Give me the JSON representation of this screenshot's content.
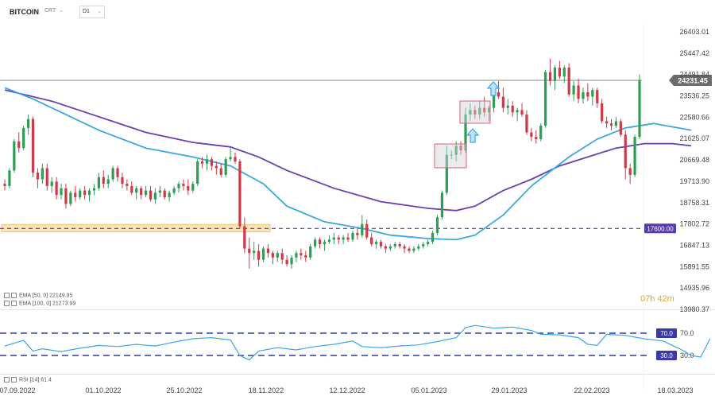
{
  "header": {
    "symbol": "BITCOIN",
    "instrument_type": "CRT",
    "timeframe": "D1"
  },
  "legend": {
    "ema50": "EMA [50, 0] 22149.95",
    "ema100": "EMA [100, 0] 21273.99",
    "rsi": "RSI [14] 61.4"
  },
  "countdown": "07h 42m",
  "colors": {
    "up": "#2e9e54",
    "down": "#d0394a",
    "ema50": "#39a8e0",
    "ema100": "#6a3fb0",
    "rsi": "#39a8e0",
    "level_line": "#4a3aa6",
    "rsi_band": "#2c3aa8",
    "price_tag_bg": "#6b6b6b",
    "level_tag_bg": "#5a3aa8",
    "rsi_tag_bg": "#3a3aa6",
    "support_box": "#f1c27a",
    "annotation_box": "#d6607a",
    "arrow": "#3aa6e6"
  },
  "chart_data": {
    "type": "candlestick",
    "price_axis_ticks": [
      "26403.01",
      "25447.42",
      "24491.84",
      "23536.25",
      "22580.66",
      "21625.07",
      "20669.48",
      "19713.90",
      "18758.31",
      "17802.72",
      "16847.13",
      "15891.55",
      "14935.96",
      "13980.37"
    ],
    "x_axis_ticks": [
      "07.09.2022",
      "01.10.2022",
      "25.10.2022",
      "18.11.2022",
      "12.12.2022",
      "05.01.2023",
      "29.01.2023",
      "22.02.2023",
      "18.03.2023"
    ],
    "ylim": [
      13980.37,
      26403.01
    ],
    "current_price": "24231.45",
    "current_price_value": 24231.45,
    "horizontal_level": "17600.00",
    "horizontal_level_value": 17600,
    "support_zone": [
      17450,
      17780
    ],
    "candles_x_range": [
      0,
      160
    ],
    "candles": [
      [
        19600,
        19800,
        19300,
        19500
      ],
      [
        19500,
        20300,
        19400,
        20200
      ],
      [
        20200,
        21600,
        20100,
        21500
      ],
      [
        21500,
        21900,
        21000,
        21200
      ],
      [
        21200,
        22200,
        21100,
        22100
      ],
      [
        22100,
        22700,
        21800,
        22500
      ],
      [
        22500,
        22600,
        19900,
        20100
      ],
      [
        20100,
        20300,
        19400,
        19800
      ],
      [
        19800,
        20500,
        19600,
        20300
      ],
      [
        20300,
        20500,
        19300,
        19500
      ],
      [
        19500,
        19900,
        19200,
        19700
      ],
      [
        19700,
        19900,
        18900,
        19100
      ],
      [
        19100,
        19600,
        18900,
        19400
      ],
      [
        19400,
        19600,
        18500,
        18700
      ],
      [
        18700,
        19300,
        18600,
        19200
      ],
      [
        19200,
        19500,
        18800,
        19000
      ],
      [
        19000,
        19400,
        18900,
        19300
      ],
      [
        19300,
        19500,
        18900,
        19100
      ],
      [
        19100,
        19400,
        18800,
        19300
      ],
      [
        19300,
        19600,
        19100,
        19400
      ],
      [
        19400,
        20100,
        19300,
        19900
      ],
      [
        19900,
        20200,
        19400,
        19600
      ],
      [
        19600,
        20000,
        19400,
        19800
      ],
      [
        19800,
        20400,
        19700,
        20300
      ],
      [
        20300,
        20400,
        19700,
        19900
      ],
      [
        19900,
        20100,
        19400,
        19600
      ],
      [
        19600,
        19800,
        19300,
        19500
      ],
      [
        19500,
        19700,
        19100,
        19200
      ],
      [
        19200,
        19500,
        18900,
        19400
      ],
      [
        19400,
        19500,
        18900,
        19100
      ],
      [
        19100,
        19500,
        19000,
        19300
      ],
      [
        19300,
        19500,
        18800,
        18900
      ],
      [
        18900,
        19400,
        18700,
        19200
      ],
      [
        19200,
        19500,
        19000,
        19300
      ],
      [
        19300,
        19400,
        18900,
        19000
      ],
      [
        19000,
        19300,
        18800,
        19200
      ],
      [
        19200,
        19500,
        19100,
        19400
      ],
      [
        19400,
        19700,
        19200,
        19600
      ],
      [
        19600,
        19800,
        19300,
        19500
      ],
      [
        19500,
        19800,
        19100,
        19300
      ],
      [
        19300,
        19700,
        19200,
        19600
      ],
      [
        19600,
        20700,
        19500,
        20600
      ],
      [
        20600,
        20800,
        20300,
        20500
      ],
      [
        20500,
        20900,
        20200,
        20700
      ],
      [
        20700,
        20800,
        20200,
        20400
      ],
      [
        20400,
        20600,
        20000,
        20300
      ],
      [
        20300,
        20500,
        19900,
        20000
      ],
      [
        20000,
        20800,
        19900,
        20700
      ],
      [
        20700,
        21200,
        20600,
        20800
      ],
      [
        20800,
        21000,
        20500,
        20600
      ],
      [
        20600,
        20700,
        17600,
        17700
      ],
      [
        17700,
        18100,
        16500,
        16700
      ],
      [
        16700,
        17200,
        15800,
        16500
      ],
      [
        16500,
        17000,
        16200,
        16600
      ],
      [
        16600,
        16900,
        15900,
        16200
      ],
      [
        16200,
        16800,
        16100,
        16700
      ],
      [
        16700,
        16900,
        16300,
        16500
      ],
      [
        16500,
        16600,
        16000,
        16300
      ],
      [
        16300,
        16600,
        16100,
        16500
      ],
      [
        16500,
        16700,
        16000,
        16200
      ],
      [
        16200,
        16400,
        15900,
        16000
      ],
      [
        16000,
        16400,
        15800,
        16300
      ],
      [
        16300,
        16600,
        16100,
        16500
      ],
      [
        16500,
        16700,
        16200,
        16400
      ],
      [
        16400,
        16600,
        16100,
        16300
      ],
      [
        16300,
        16900,
        16200,
        16800
      ],
      [
        16800,
        17200,
        16700,
        17100
      ],
      [
        17100,
        17200,
        16700,
        16900
      ],
      [
        16900,
        17100,
        16600,
        17000
      ],
      [
        17000,
        17300,
        16900,
        17100
      ],
      [
        17100,
        17400,
        16900,
        17200
      ],
      [
        17200,
        17300,
        16900,
        17100
      ],
      [
        17100,
        17300,
        16900,
        17200
      ],
      [
        17200,
        17400,
        17000,
        17100
      ],
      [
        17100,
        17500,
        17000,
        17400
      ],
      [
        17400,
        17600,
        17100,
        17300
      ],
      [
        17300,
        18200,
        17200,
        17800
      ],
      [
        17800,
        18000,
        17100,
        17200
      ],
      [
        17200,
        17400,
        16800,
        16900
      ],
      [
        16900,
        17100,
        16700,
        17000
      ],
      [
        17000,
        17100,
        16700,
        16800
      ],
      [
        16800,
        16900,
        16500,
        16700
      ],
      [
        16700,
        16900,
        16600,
        16800
      ],
      [
        16800,
        17000,
        16700,
        16900
      ],
      [
        16900,
        17000,
        16700,
        16800
      ],
      [
        16800,
        16900,
        16500,
        16700
      ],
      [
        16700,
        16800,
        16500,
        16600
      ],
      [
        16600,
        16800,
        16500,
        16700
      ],
      [
        16700,
        16900,
        16600,
        16800
      ],
      [
        16800,
        17000,
        16700,
        16900
      ],
      [
        16900,
        17100,
        16800,
        17000
      ],
      [
        17000,
        17500,
        16900,
        17400
      ],
      [
        17400,
        18200,
        17300,
        18100
      ],
      [
        18100,
        19300,
        18000,
        19200
      ],
      [
        19200,
        21300,
        19100,
        20900
      ],
      [
        20900,
        21100,
        20700,
        20900
      ],
      [
        20900,
        21500,
        20600,
        21300
      ],
      [
        21300,
        21500,
        20900,
        21100
      ],
      [
        21100,
        23000,
        21000,
        22700
      ],
      [
        22700,
        23200,
        22400,
        22900
      ],
      [
        22900,
        23100,
        22500,
        22700
      ],
      [
        22700,
        23300,
        22500,
        23000
      ],
      [
        23000,
        23500,
        22600,
        22800
      ],
      [
        22800,
        23100,
        22400,
        23000
      ],
      [
        23000,
        23800,
        22800,
        23700
      ],
      [
        23700,
        24200,
        23400,
        23500
      ],
      [
        23500,
        23900,
        22800,
        23000
      ],
      [
        23000,
        23400,
        22700,
        23100
      ],
      [
        23100,
        23300,
        22600,
        22800
      ],
      [
        22800,
        23000,
        22400,
        22900
      ],
      [
        22900,
        23200,
        22600,
        22700
      ],
      [
        22700,
        22900,
        21800,
        21900
      ],
      [
        21900,
        22100,
        21500,
        21700
      ],
      [
        21700,
        22000,
        21400,
        21600
      ],
      [
        21600,
        22300,
        21500,
        22200
      ],
      [
        22200,
        24700,
        22100,
        24600
      ],
      [
        24600,
        25200,
        24000,
        24200
      ],
      [
        24200,
        24900,
        23800,
        24800
      ],
      [
        24800,
        25100,
        24300,
        24400
      ],
      [
        24400,
        24900,
        24100,
        24800
      ],
      [
        24800,
        25000,
        23500,
        23600
      ],
      [
        23600,
        24200,
        23300,
        24000
      ],
      [
        24000,
        24300,
        23200,
        23400
      ],
      [
        23400,
        23900,
        23200,
        23700
      ],
      [
        23700,
        24100,
        23300,
        23500
      ],
      [
        23500,
        23900,
        23100,
        23800
      ],
      [
        23800,
        23900,
        23000,
        23200
      ],
      [
        23200,
        23400,
        22300,
        22400
      ],
      [
        22400,
        22600,
        22100,
        22300
      ],
      [
        22300,
        22500,
        22000,
        22200
      ],
      [
        22200,
        22600,
        22100,
        22400
      ],
      [
        22400,
        22500,
        21700,
        21800
      ],
      [
        21800,
        22000,
        19800,
        20300
      ],
      [
        20300,
        20500,
        19600,
        20000
      ],
      [
        20000,
        21800,
        19900,
        21700
      ],
      [
        21700,
        24500,
        21600,
        24231
      ]
    ],
    "ema50": [
      [
        0,
        23900
      ],
      [
        6,
        23400
      ],
      [
        12,
        22800
      ],
      [
        20,
        22000
      ],
      [
        30,
        21200
      ],
      [
        40,
        20800
      ],
      [
        48,
        20400
      ],
      [
        55,
        19600
      ],
      [
        60,
        18600
      ],
      [
        68,
        17900
      ],
      [
        76,
        17600
      ],
      [
        82,
        17300
      ],
      [
        90,
        17150
      ],
      [
        96,
        17100
      ],
      [
        100,
        17300
      ],
      [
        106,
        18200
      ],
      [
        112,
        19500
      ],
      [
        120,
        20800
      ],
      [
        126,
        21600
      ],
      [
        132,
        22100
      ],
      [
        138,
        22300
      ],
      [
        142,
        22150
      ],
      [
        146,
        22000
      ]
    ],
    "ema100": [
      [
        0,
        23800
      ],
      [
        10,
        23300
      ],
      [
        20,
        22600
      ],
      [
        30,
        21900
      ],
      [
        40,
        21450
      ],
      [
        48,
        21250
      ],
      [
        54,
        20800
      ],
      [
        60,
        20200
      ],
      [
        70,
        19400
      ],
      [
        80,
        18800
      ],
      [
        90,
        18500
      ],
      [
        96,
        18400
      ],
      [
        100,
        18600
      ],
      [
        106,
        19300
      ],
      [
        112,
        19800
      ],
      [
        118,
        20400
      ],
      [
        124,
        20800
      ],
      [
        130,
        21200
      ],
      [
        136,
        21400
      ],
      [
        142,
        21400
      ],
      [
        146,
        21300
      ]
    ],
    "rsi_axis_ticks": [
      "70.0",
      "30.0"
    ],
    "rsi_bands": [
      70,
      30
    ],
    "rsi": [
      [
        0,
        47
      ],
      [
        2,
        52
      ],
      [
        4,
        57
      ],
      [
        6,
        38
      ],
      [
        8,
        42
      ],
      [
        12,
        37
      ],
      [
        16,
        43
      ],
      [
        20,
        48
      ],
      [
        24,
        46
      ],
      [
        28,
        50
      ],
      [
        32,
        47
      ],
      [
        36,
        54
      ],
      [
        40,
        60
      ],
      [
        44,
        62
      ],
      [
        48,
        58
      ],
      [
        50,
        30
      ],
      [
        52,
        22
      ],
      [
        54,
        38
      ],
      [
        58,
        44
      ],
      [
        62,
        40
      ],
      [
        66,
        46
      ],
      [
        70,
        50
      ],
      [
        74,
        56
      ],
      [
        76,
        46
      ],
      [
        80,
        44
      ],
      [
        84,
        47
      ],
      [
        88,
        49
      ],
      [
        92,
        55
      ],
      [
        96,
        62
      ],
      [
        98,
        80
      ],
      [
        100,
        84
      ],
      [
        104,
        79
      ],
      [
        108,
        81
      ],
      [
        112,
        75
      ],
      [
        114,
        68
      ],
      [
        118,
        67
      ],
      [
        122,
        62
      ],
      [
        124,
        50
      ],
      [
        126,
        48
      ],
      [
        128,
        68
      ],
      [
        132,
        66
      ],
      [
        136,
        60
      ],
      [
        140,
        56
      ],
      [
        142,
        48
      ],
      [
        144,
        40
      ],
      [
        146,
        30
      ],
      [
        148,
        27
      ],
      [
        150,
        60
      ]
    ]
  }
}
